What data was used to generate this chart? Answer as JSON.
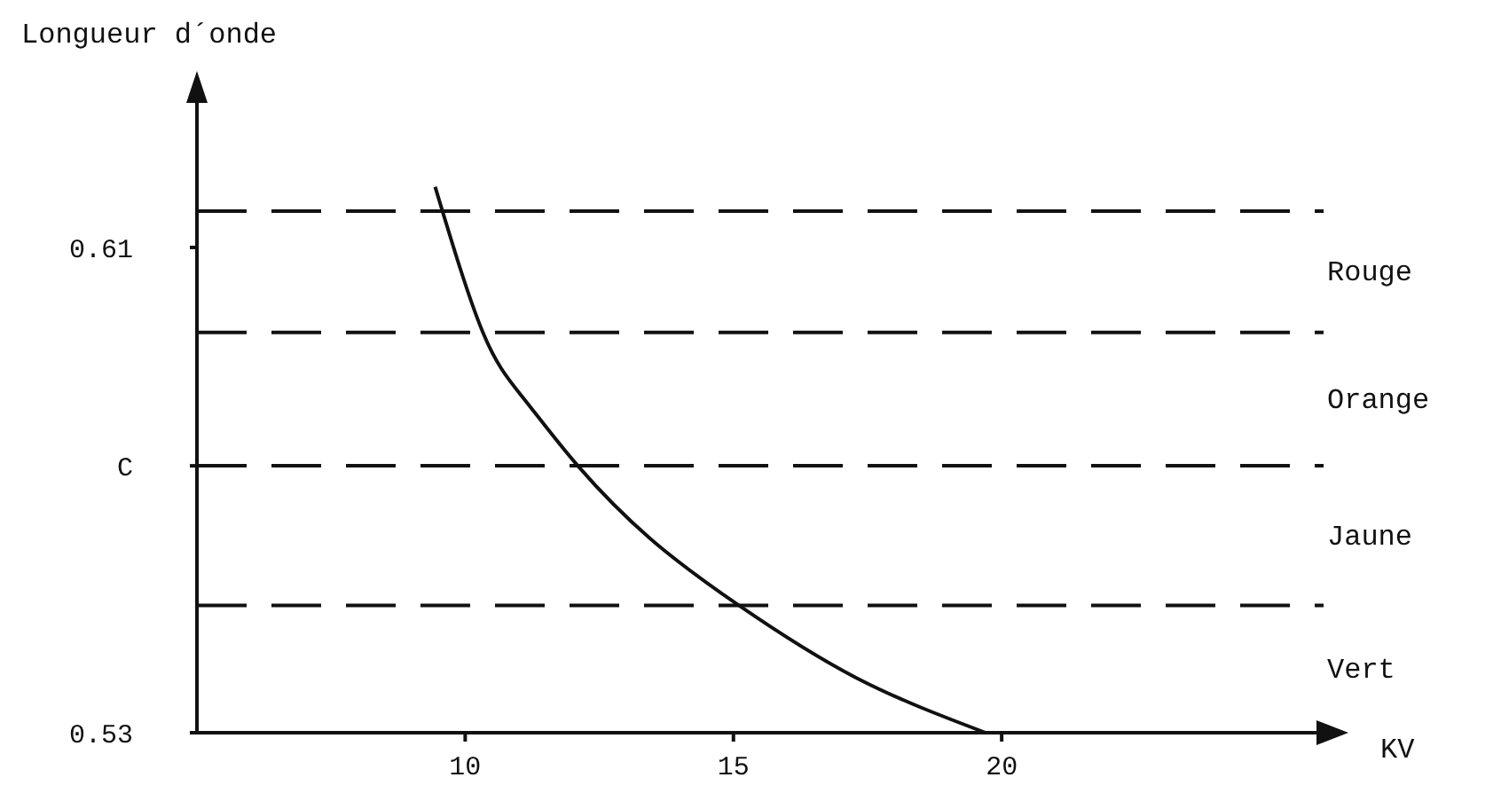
{
  "chart_data": {
    "type": "line",
    "ylabel": "Longueur d´onde",
    "xlabel": "KV",
    "x": [
      9.44,
      10.33,
      11.1,
      12.1,
      13.45,
      15.1,
      17.3,
      19.7
    ],
    "series": [
      {
        "color": "#111111",
        "values": [
          0.62,
          0.596,
          0.585,
          0.574,
          0.562,
          0.551,
          0.539,
          0.53
        ]
      }
    ],
    "xlim": [
      5,
      26
    ],
    "xticks": [
      10,
      15,
      20
    ],
    "ylim": [
      0.53,
      0.635
    ],
    "yticks": [
      0.53,
      {
        "value": 0.574,
        "label": "C"
      },
      0.61
    ],
    "ref_lines": [
      {
        "axis": "y",
        "value": 0.616,
        "line_style": "dashed",
        "color": "#111111"
      },
      {
        "axis": "y",
        "value": 0.596,
        "line_style": "dashed",
        "color": "#111111"
      },
      {
        "axis": "y",
        "value": 0.574,
        "line_style": "dashed",
        "color": "#111111"
      },
      {
        "axis": "y",
        "value": 0.551,
        "line_style": "dashed",
        "color": "#111111"
      }
    ],
    "annotations": [
      "Rouge",
      "Orange",
      "Jaune",
      "Vert"
    ],
    "grid": false,
    "legend": false,
    "marker": "none",
    "line_style": "solid"
  }
}
